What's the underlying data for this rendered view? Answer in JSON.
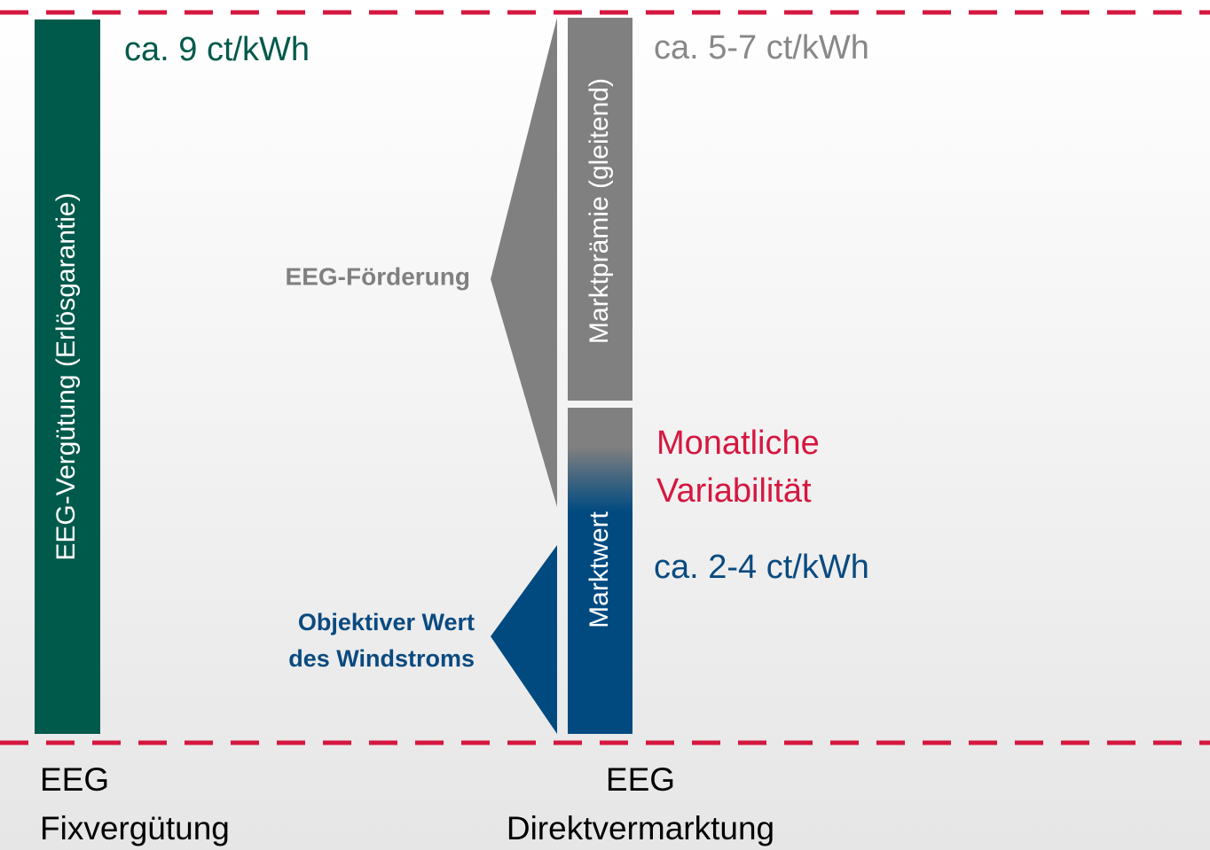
{
  "fix": {
    "bar_label": "EEG-Vergütung (Erlösgarantie)",
    "price": "ca. 9 ct/kWh",
    "caption": {
      "lines": [
        "EEG",
        "Fixvergütung"
      ]
    }
  },
  "direct": {
    "premium_label": "Marktprämie (gleitend)",
    "premium_price": "ca. 5-7 ct/kWh",
    "market_label": "Marktwert",
    "market_price": "ca. 2-4 ct/kWh",
    "variability": {
      "lines": [
        "Monatliche",
        "Variabilität"
      ]
    },
    "caption": {
      "lines": [
        "EEG",
        "Direktvermarktung"
      ]
    }
  },
  "braces": {
    "subsidy": "EEG-Förderung",
    "objective_value": {
      "lines": [
        "Objektiver Wert",
        "des Windstroms"
      ]
    }
  }
}
